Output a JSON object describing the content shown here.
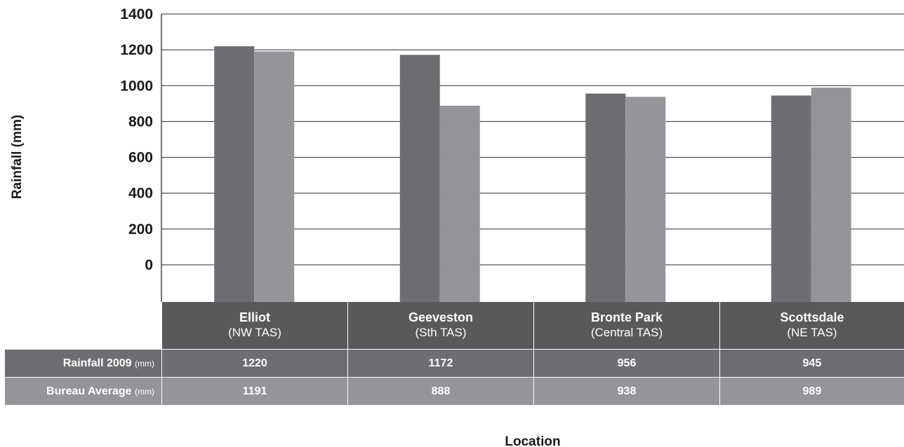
{
  "chart_data": {
    "type": "bar",
    "categories": [
      "Elliot",
      "Geeveston",
      "Bronte Park",
      "Scottsdale"
    ],
    "category_regions": [
      "(NW TAS)",
      "(Sth TAS)",
      "(Central TAS)",
      "(NE TAS)"
    ],
    "series": [
      {
        "name": "Rainfall 2009",
        "unit": "(mm)",
        "values": [
          1220,
          1172,
          956,
          945
        ],
        "color": "#6d6e71"
      },
      {
        "name": "Bureau Average",
        "unit": "(mm)",
        "values": [
          1191,
          888,
          938,
          989
        ],
        "color": "#939598"
      }
    ],
    "title": "",
    "xlabel": "Location",
    "ylabel": "Rainfall (mm)",
    "yticks": [
      0,
      200,
      400,
      600,
      800,
      1000,
      1200,
      1400
    ],
    "ylim": [
      0,
      1400
    ],
    "grid": true,
    "legend": "table below chart"
  }
}
